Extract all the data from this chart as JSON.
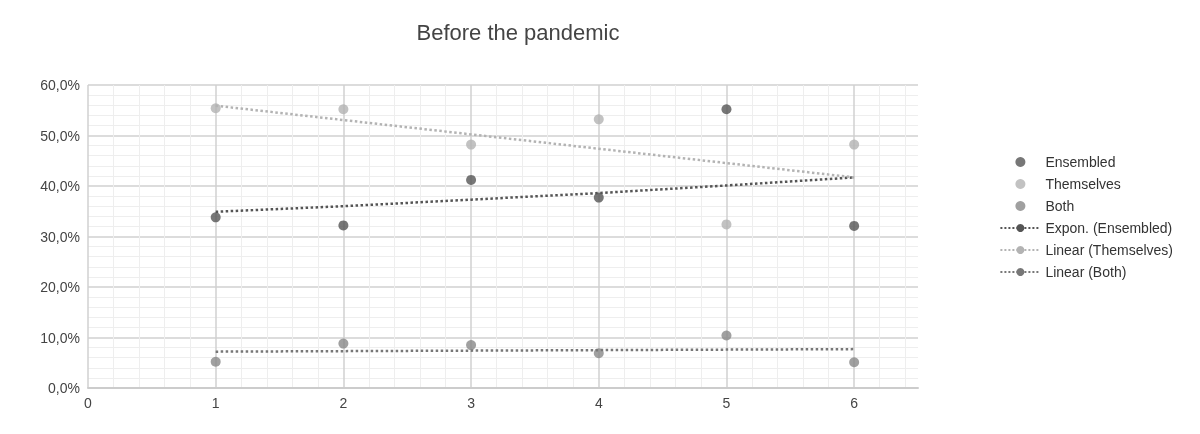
{
  "chart_data": {
    "type": "scatter",
    "title": "Before the pandemic",
    "series": [
      {
        "name": "Ensembled",
        "color": "#555555",
        "x": [
          1,
          2,
          3,
          4,
          5,
          6
        ],
        "values": [
          33.8,
          32.2,
          41.2,
          37.7,
          55.2,
          32.1
        ]
      },
      {
        "name": "Themselves",
        "color": "#b3b3b3",
        "x": [
          1,
          2,
          3,
          4,
          5,
          6
        ],
        "values": [
          55.4,
          55.2,
          48.2,
          53.2,
          32.4,
          48.2
        ]
      },
      {
        "name": "Both",
        "color": "#888888",
        "x": [
          1,
          2,
          3,
          4,
          5,
          6
        ],
        "values": [
          5.2,
          8.8,
          8.5,
          6.9,
          10.4,
          5.1
        ]
      },
      {
        "name": "Expon. (Ensembled)",
        "type": "line",
        "marker": "none",
        "line_style": "dotted",
        "color": "#555555",
        "x": [
          1,
          2,
          3,
          4,
          5,
          6
        ],
        "values": [
          34.9,
          36.0,
          37.3,
          38.6,
          40.1,
          41.7
        ]
      },
      {
        "name": "Linear (Themselves)",
        "type": "line",
        "marker": "none",
        "line_style": "dotted",
        "color": "#b3b3b3",
        "x": [
          1,
          6
        ],
        "values": [
          55.9,
          41.7
        ]
      },
      {
        "name": "Linear (Both)",
        "type": "line",
        "marker": "none",
        "line_style": "dotted",
        "color": "#777777",
        "x": [
          1,
          6
        ],
        "values": [
          7.2,
          7.7
        ]
      }
    ],
    "marker": "circle",
    "xlim": [
      0,
      6.5
    ],
    "xticks": [
      0,
      1,
      2,
      3,
      4,
      5,
      6
    ],
    "ylim": [
      0,
      60
    ],
    "yticks": [
      {
        "value": 0,
        "label": "0,0%"
      },
      {
        "value": 10,
        "label": "10,0%"
      },
      {
        "value": 20,
        "label": "20,0%"
      },
      {
        "value": 30,
        "label": "30,0%"
      },
      {
        "value": 40,
        "label": "40,0%"
      },
      {
        "value": 50,
        "label": "50,0%"
      },
      {
        "value": 60,
        "label": "60,0%"
      }
    ],
    "grid": true,
    "legend": "right"
  }
}
